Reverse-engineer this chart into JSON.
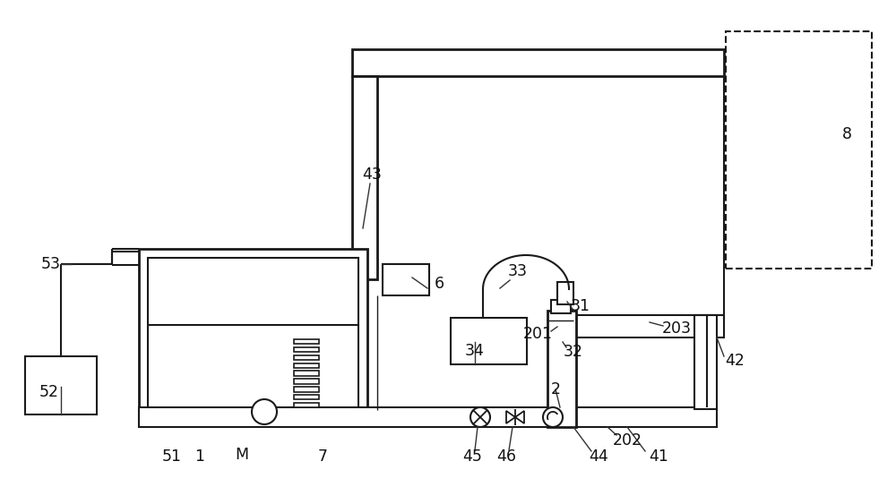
{
  "bg_color": "#ffffff",
  "lc": "#1a1a1a",
  "figsize": [
    10.0,
    5.63
  ],
  "dpi": 100,
  "dot_color": "#888888",
  "pipe_dot_color": "#999999"
}
